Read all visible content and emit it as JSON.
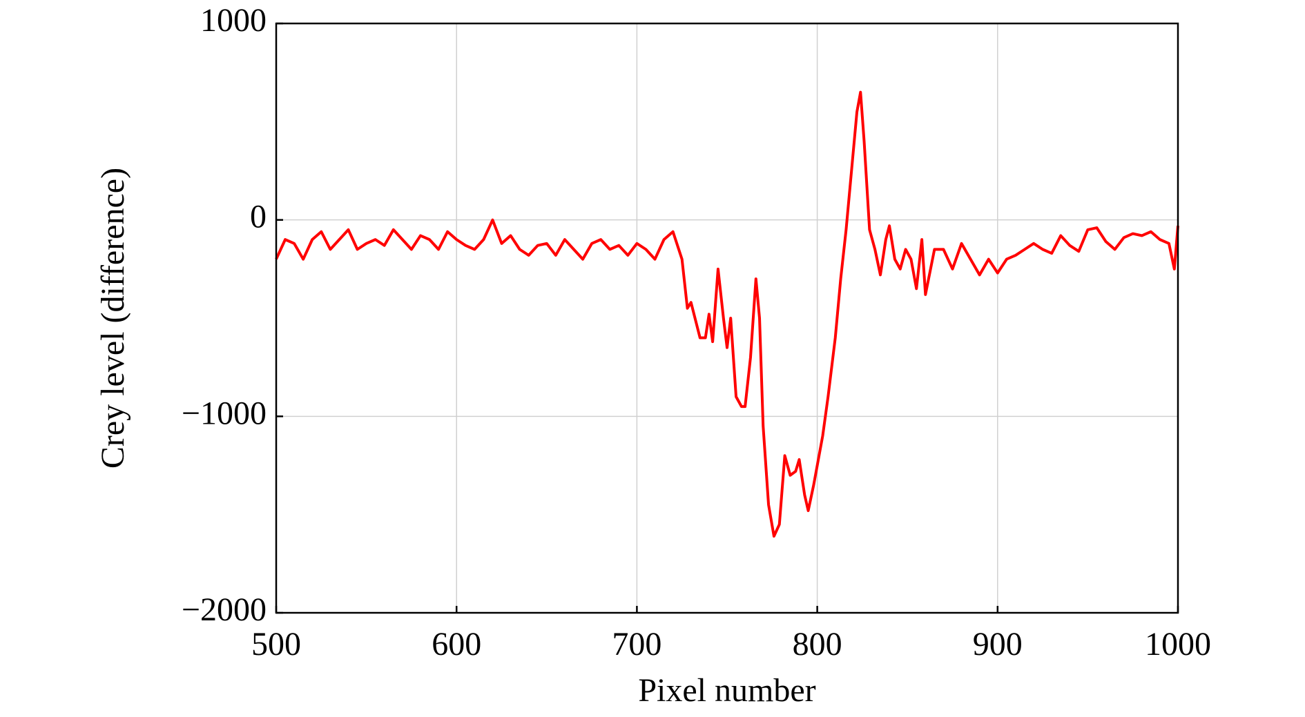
{
  "chart_data": {
    "type": "line",
    "xlabel": "Pixel number",
    "ylabel": "Crey level (difference)",
    "color": "#ff0000",
    "grid": true,
    "xlim": [
      500,
      1000
    ],
    "xticks": [
      500,
      600,
      700,
      800,
      900,
      1000
    ],
    "ylim": [
      -2000,
      1000
    ],
    "yticks": [
      {
        "value": -2000,
        "label": "−2000"
      },
      {
        "value": -1000,
        "label": "−1000"
      },
      0,
      1000
    ],
    "x": [
      500,
      505,
      510,
      515,
      520,
      525,
      530,
      535,
      540,
      545,
      550,
      555,
      560,
      565,
      570,
      575,
      580,
      585,
      590,
      595,
      600,
      605,
      610,
      615,
      620,
      625,
      630,
      635,
      640,
      645,
      650,
      655,
      660,
      665,
      670,
      675,
      680,
      685,
      690,
      695,
      700,
      705,
      710,
      715,
      720,
      725,
      728,
      730,
      735,
      738,
      740,
      742,
      745,
      748,
      750,
      752,
      755,
      758,
      760,
      763,
      766,
      768,
      770,
      773,
      776,
      779,
      782,
      785,
      788,
      790,
      793,
      795,
      798,
      800,
      803,
      806,
      810,
      813,
      816,
      819,
      822,
      824,
      826,
      829,
      832,
      835,
      838,
      840,
      843,
      846,
      849,
      852,
      855,
      858,
      860,
      865,
      870,
      875,
      880,
      885,
      890,
      895,
      900,
      905,
      910,
      915,
      920,
      925,
      930,
      935,
      940,
      945,
      950,
      955,
      960,
      965,
      970,
      975,
      980,
      985,
      990,
      995,
      998,
      1000
    ],
    "values": [
      -200,
      -100,
      -120,
      -200,
      -100,
      -60,
      -150,
      -100,
      -50,
      -150,
      -120,
      -100,
      -130,
      -50,
      -100,
      -150,
      -80,
      -100,
      -150,
      -60,
      -100,
      -130,
      -150,
      -100,
      0,
      -120,
      -80,
      -150,
      -180,
      -130,
      -120,
      -180,
      -100,
      -150,
      -200,
      -120,
      -100,
      -150,
      -130,
      -180,
      -120,
      -150,
      -200,
      -100,
      -60,
      -200,
      -450,
      -420,
      -600,
      -600,
      -480,
      -620,
      -250,
      -500,
      -650,
      -500,
      -900,
      -950,
      -950,
      -700,
      -300,
      -500,
      -1050,
      -1450,
      -1610,
      -1550,
      -1200,
      -1300,
      -1280,
      -1220,
      -1400,
      -1480,
      -1350,
      -1250,
      -1100,
      -900,
      -600,
      -300,
      -50,
      250,
      550,
      650,
      400,
      -50,
      -150,
      -280,
      -100,
      -30,
      -200,
      -250,
      -150,
      -200,
      -350,
      -100,
      -380,
      -150,
      -150,
      -250,
      -120,
      -200,
      -280,
      -200,
      -270,
      -200,
      -180,
      -150,
      -120,
      -150,
      -170,
      -80,
      -130,
      -160,
      -50,
      -40,
      -110,
      -150,
      -90,
      -70,
      -80,
      -60,
      -100,
      -120,
      -250,
      -30
    ]
  }
}
